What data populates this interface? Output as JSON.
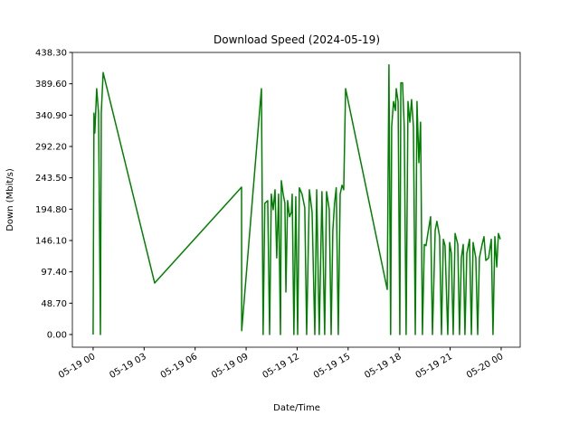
{
  "chart_data": {
    "type": "line",
    "title": "Download Speed (2024-05-19)",
    "x_label": "Date/Time",
    "y_label": "Down (Mbit/s)",
    "series": [
      {
        "name": "Down",
        "color": "#008000",
        "x": [
          0,
          0.05,
          0.1,
          0.21,
          0.32,
          0.43,
          0.48,
          0.59,
          3.62,
          8.73,
          8.74,
          9.9,
          10.0,
          10.1,
          10.27,
          10.38,
          10.48,
          10.59,
          10.7,
          10.8,
          10.91,
          11.02,
          11.07,
          11.18,
          11.28,
          11.34,
          11.44,
          11.55,
          11.66,
          11.71,
          11.81,
          11.92,
          12.03,
          12.13,
          12.29,
          12.45,
          12.56,
          12.72,
          12.88,
          13.04,
          13.15,
          13.3,
          13.46,
          13.62,
          13.73,
          13.89,
          14.0,
          14.1,
          14.2,
          14.3,
          14.42,
          14.53,
          14.64,
          14.74,
          14.85,
          17.3,
          17.4,
          17.5,
          17.56,
          17.67,
          17.78,
          17.83,
          17.94,
          18.04,
          18.1,
          18.2,
          18.3,
          18.41,
          18.52,
          18.63,
          18.73,
          18.84,
          18.95,
          19.05,
          19.16,
          19.26,
          19.37,
          19.48,
          19.58,
          19.69,
          19.85,
          19.96,
          20.12,
          20.22,
          20.38,
          20.49,
          20.6,
          20.7,
          20.86,
          20.97,
          21.07,
          21.18,
          21.29,
          21.45,
          21.55,
          21.66,
          21.77,
          21.87,
          21.98,
          22.14,
          22.25,
          22.35,
          22.51,
          22.62,
          22.72,
          22.88,
          22.99,
          23.1,
          23.26,
          23.42,
          23.52,
          23.63,
          23.74,
          23.84,
          23.95
        ],
        "values": [
          0,
          344,
          313,
          382,
          344,
          0,
          344,
          407,
          80,
          229,
          6,
          382,
          0,
          204,
          208,
          0,
          218,
          194,
          225,
          119,
          218,
          0,
          239,
          218,
          204,
          66,
          208,
          183,
          190,
          218,
          0,
          214,
          0,
          228,
          218,
          197,
          0,
          225,
          190,
          0,
          225,
          0,
          222,
          0,
          222,
          194,
          0,
          162,
          204,
          228,
          0,
          218,
          232,
          225,
          382,
          70,
          419,
          0,
          323,
          362,
          348,
          382,
          362,
          0,
          391,
          391,
          323,
          0,
          362,
          330,
          365,
          323,
          0,
          362,
          267,
          330,
          0,
          140,
          138,
          157,
          183,
          0,
          162,
          176,
          152,
          0,
          148,
          138,
          0,
          143,
          126,
          0,
          157,
          140,
          0,
          119,
          140,
          0,
          126,
          148,
          0,
          143,
          119,
          0,
          119,
          140,
          152,
          115,
          119,
          148,
          0,
          152,
          105,
          157,
          148
        ]
      }
    ],
    "xlim": [
      -1.22,
      25.12
    ],
    "ylim": [
      -19.7,
      438.3
    ],
    "xticks": [
      {
        "value": 0,
        "label": "05-19 00"
      },
      {
        "value": 3,
        "label": "05-19 03"
      },
      {
        "value": 6,
        "label": "05-19 06"
      },
      {
        "value": 9,
        "label": "05-19 09"
      },
      {
        "value": 12,
        "label": "05-19 12"
      },
      {
        "value": 15,
        "label": "05-19 15"
      },
      {
        "value": 18,
        "label": "05-19 18"
      },
      {
        "value": 21,
        "label": "05-19 21"
      },
      {
        "value": 24,
        "label": "05-20 00"
      }
    ],
    "yticks": [
      {
        "value": 0,
        "label": "0.00"
      },
      {
        "value": 48.7,
        "label": "48.70"
      },
      {
        "value": 97.4,
        "label": "97.40"
      },
      {
        "value": 146.1,
        "label": "146.10"
      },
      {
        "value": 194.8,
        "label": "194.80"
      },
      {
        "value": 243.5,
        "label": "243.50"
      },
      {
        "value": 292.2,
        "label": "292.20"
      },
      {
        "value": 340.9,
        "label": "340.90"
      },
      {
        "value": 389.6,
        "label": "389.60"
      },
      {
        "value": 438.3,
        "label": "438.30"
      }
    ]
  }
}
